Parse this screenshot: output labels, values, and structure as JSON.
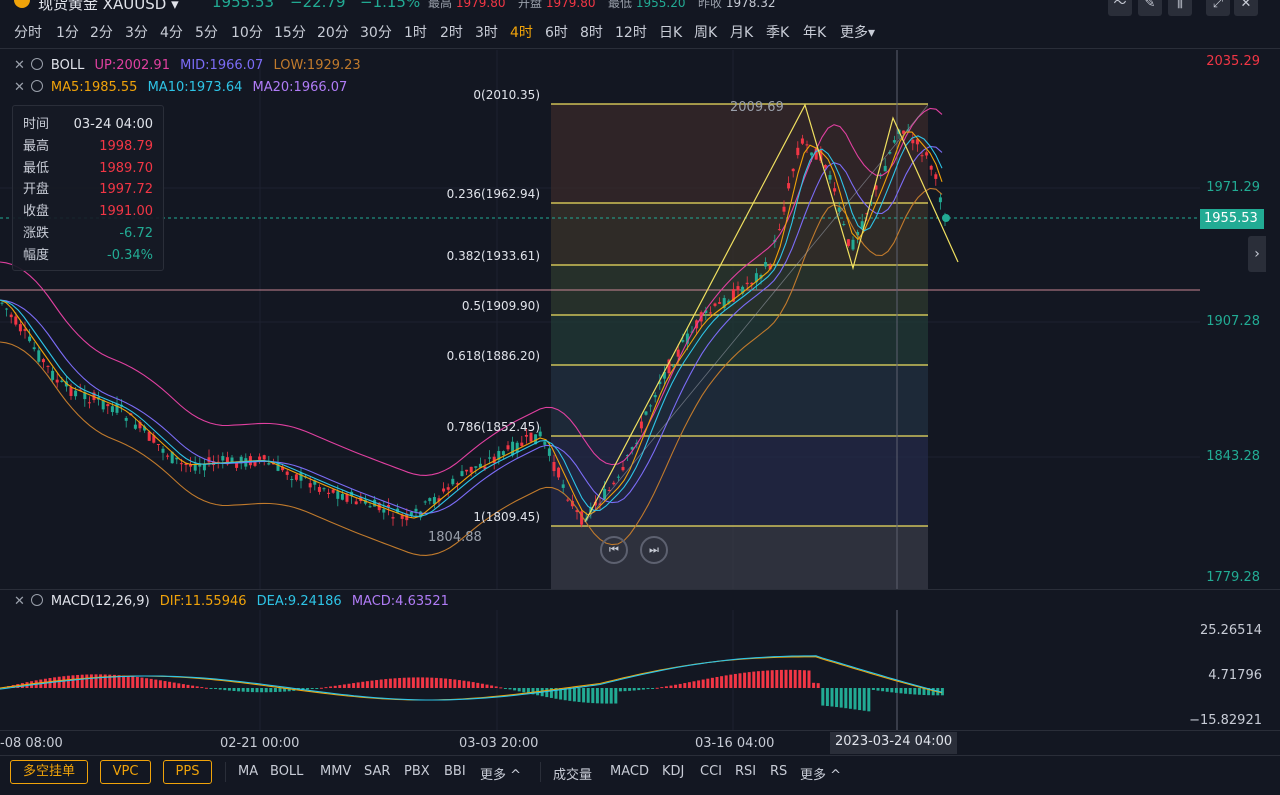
{
  "header": {
    "symbol": "现货黄金 XAUUSD ▾",
    "price": "1955.53",
    "change": "−22.79",
    "change_pct": "−1.15%",
    "high_label": "最高",
    "high": "1979.80",
    "open_label": "开盘",
    "open": "1979.80",
    "low_label": "最低",
    "low": "1955.20",
    "prev_label": "昨收",
    "prev": "1978.32"
  },
  "toolbar_icons": [
    "line-tool-icon",
    "pencil-icon",
    "candles-icon",
    "expand-icon",
    "close-icon"
  ],
  "timeframes": [
    "分时",
    "1分",
    "2分",
    "3分",
    "4分",
    "5分",
    "10分",
    "15分",
    "20分",
    "30分",
    "1时",
    "2时",
    "3时",
    "4时",
    "6时",
    "8时",
    "12时",
    "日K",
    "周K",
    "月K",
    "季K",
    "年K",
    "更多▾"
  ],
  "active_timeframe": "4时",
  "legends": {
    "boll": {
      "name": "BOLL",
      "up": "UP:2002.91",
      "mid": "MID:1966.07",
      "low": "LOW:1929.23"
    },
    "ma": {
      "ma5": "MA5:1985.55",
      "ma10": "MA10:1973.64",
      "ma20": "MA20:1966.07"
    },
    "macd": {
      "name": "MACD(12,26,9)",
      "dif": "DIF:11.55946",
      "dea": "DEA:9.24186",
      "macd": "MACD:4.63521"
    }
  },
  "ohlc_popup": {
    "rows": [
      {
        "k": "时间",
        "v": "03-24 04:00",
        "c": "white"
      },
      {
        "k": "最高",
        "v": "1998.79",
        "c": "red"
      },
      {
        "k": "最低",
        "v": "1989.70",
        "c": "red"
      },
      {
        "k": "开盘",
        "v": "1997.72",
        "c": "red"
      },
      {
        "k": "收盘",
        "v": "1991.00",
        "c": "red"
      },
      {
        "k": "涨跌",
        "v": "-6.72",
        "c": "green"
      },
      {
        "k": "幅度",
        "v": "-0.34%",
        "c": "green"
      }
    ]
  },
  "price_axis": [
    "2035.29",
    "1971.29",
    "1907.28",
    "1843.28",
    "1779.28"
  ],
  "current_price_tag": "1955.53",
  "fib_levels": [
    {
      "label": "0(2010.35)"
    },
    {
      "label": "0.236(1962.94)"
    },
    {
      "label": "0.382(1933.61)"
    },
    {
      "label": "0.5(1909.90)"
    },
    {
      "label": "0.618(1886.20)"
    },
    {
      "label": "0.786(1852.45)"
    },
    {
      "label": "1(1809.45)"
    }
  ],
  "annotations": {
    "high": "2009.69",
    "low": "1804.88"
  },
  "macd_axis": [
    "25.26514",
    "4.71796",
    "−15.82921"
  ],
  "time_axis": [
    "-08 08:00",
    "02-21 00:00",
    "03-03 20:00",
    "03-16 04:00"
  ],
  "time_highlight": "2023-03-24 04:00",
  "bottom": {
    "buttons": [
      "多空挂单",
      "VPC",
      "PPS"
    ],
    "main_indicators": [
      "MA",
      "BOLL",
      "MMV",
      "SAR",
      "PBX",
      "BBI",
      "更多 ^"
    ],
    "sub_indicators": [
      "成交量",
      "MACD",
      "KDJ",
      "CCI",
      "RSI",
      "RS",
      "更多 ^"
    ]
  },
  "colors": {
    "up": "#f23645",
    "down": "#22ab94",
    "accent": "#f0a30a",
    "boll_up": "#e040a0",
    "boll_mid": "#7b6cf6",
    "boll_low": "#c07a2c",
    "ma5": "#f0a30a",
    "ma10": "#2ec4e6",
    "ma20": "#b07cf6"
  }
}
